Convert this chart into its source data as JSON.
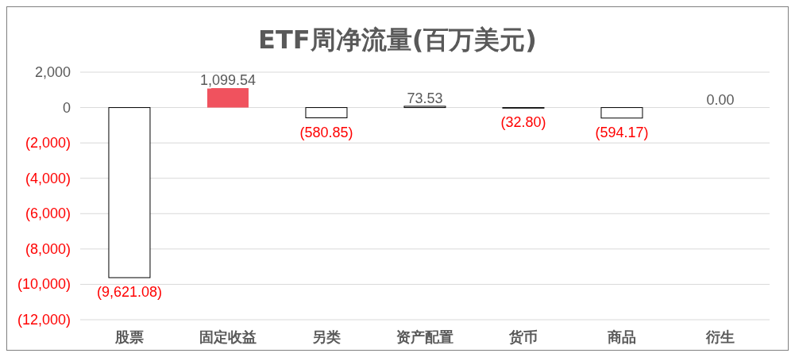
{
  "chart_data": {
    "type": "bar",
    "title": "ETF周净流量(百万美元)",
    "categories": [
      "股票",
      "固定收益",
      "另类",
      "资产配置",
      "货币",
      "商品",
      "衍生"
    ],
    "values": [
      -9621.08,
      1099.54,
      -580.85,
      73.53,
      -32.8,
      -594.17,
      0
    ],
    "colors": [
      "#ffffff",
      "#f0525e",
      "#ffffff",
      "#ffffff",
      "#ffffff",
      "#ffffff",
      "#ffffff"
    ],
    "value_labels": [
      "(9,621.08)",
      "1,099.54",
      "(580.85)",
      "73.53",
      "(32.80)",
      "(594.17)",
      "0.00"
    ],
    "ylim": [
      -12000,
      2000
    ],
    "yticks": [
      {
        "value": -12000,
        "label": "(12,000)"
      },
      {
        "value": -10000,
        "label": "(10,000)"
      },
      {
        "value": -8000,
        "label": "(8,000)"
      },
      {
        "value": -6000,
        "label": "(6,000)"
      },
      {
        "value": -4000,
        "label": "(4,000)"
      },
      {
        "value": -2000,
        "label": "(2,000)"
      },
      0,
      {
        "value": 2000,
        "label": "2,000"
      }
    ],
    "grid": "y",
    "legend": false
  }
}
